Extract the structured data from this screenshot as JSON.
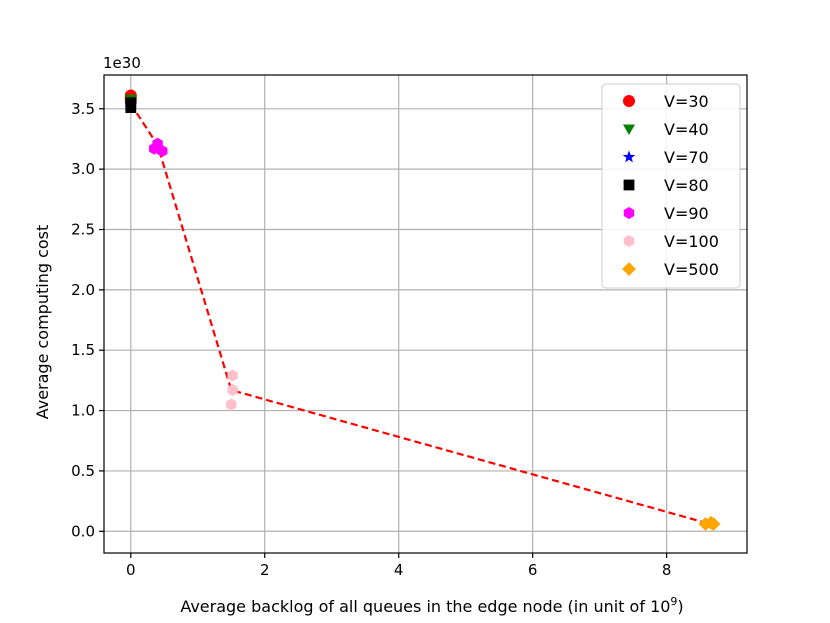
{
  "chart_data": {
    "type": "scatter",
    "xlabel": "Average backlog of all queues in the edge node (in unit of 10",
    "xlabel_sup": "9",
    "xlabel_end": ")",
    "ylabel": "Average computing cost",
    "y_offset_label": "1e30",
    "xlim": [
      -0.4,
      9.2
    ],
    "ylim": [
      -0.18,
      3.78
    ],
    "xticks": [
      0,
      2,
      4,
      6,
      8
    ],
    "yticks": [
      0.0,
      0.5,
      1.0,
      1.5,
      2.0,
      2.5,
      3.0,
      3.5
    ],
    "grid": true,
    "legend_position": "top-right",
    "series": [
      {
        "name": "V=30",
        "marker": "circle",
        "color": "#ff0000",
        "points": [
          [
            0.0,
            3.61
          ],
          [
            0.0,
            3.59
          ],
          [
            0.0,
            3.57
          ]
        ]
      },
      {
        "name": "V=40",
        "marker": "triangle-down",
        "color": "#008000",
        "points": [
          [
            0.0,
            3.58
          ],
          [
            0.0,
            3.56
          ]
        ]
      },
      {
        "name": "V=70",
        "marker": "star",
        "color": "#0000ff",
        "points": [
          [
            0.0,
            3.54
          ],
          [
            0.0,
            3.53
          ]
        ]
      },
      {
        "name": "V=80",
        "marker": "square",
        "color": "#000000",
        "points": [
          [
            0.0,
            3.55
          ],
          [
            0.0,
            3.51
          ]
        ]
      },
      {
        "name": "V=90",
        "marker": "hexagon",
        "color": "#ff00ff",
        "points": [
          [
            0.35,
            3.17
          ],
          [
            0.4,
            3.21
          ],
          [
            0.47,
            3.15
          ]
        ]
      },
      {
        "name": "V=100",
        "marker": "hexagon",
        "color": "#ffc0cb",
        "points": [
          [
            1.52,
            1.29
          ],
          [
            1.52,
            1.17
          ],
          [
            1.5,
            1.05
          ]
        ]
      },
      {
        "name": "V=500",
        "marker": "diamond",
        "color": "#ffa500",
        "points": [
          [
            8.58,
            0.06
          ],
          [
            8.66,
            0.07
          ],
          [
            8.7,
            0.06
          ]
        ]
      }
    ],
    "trend_line": {
      "style": "dashed",
      "color": "#ff0000",
      "points": [
        [
          0.0,
          3.54
        ],
        [
          0.4,
          3.2
        ],
        [
          1.5,
          1.17
        ],
        [
          8.65,
          0.06
        ]
      ]
    }
  }
}
